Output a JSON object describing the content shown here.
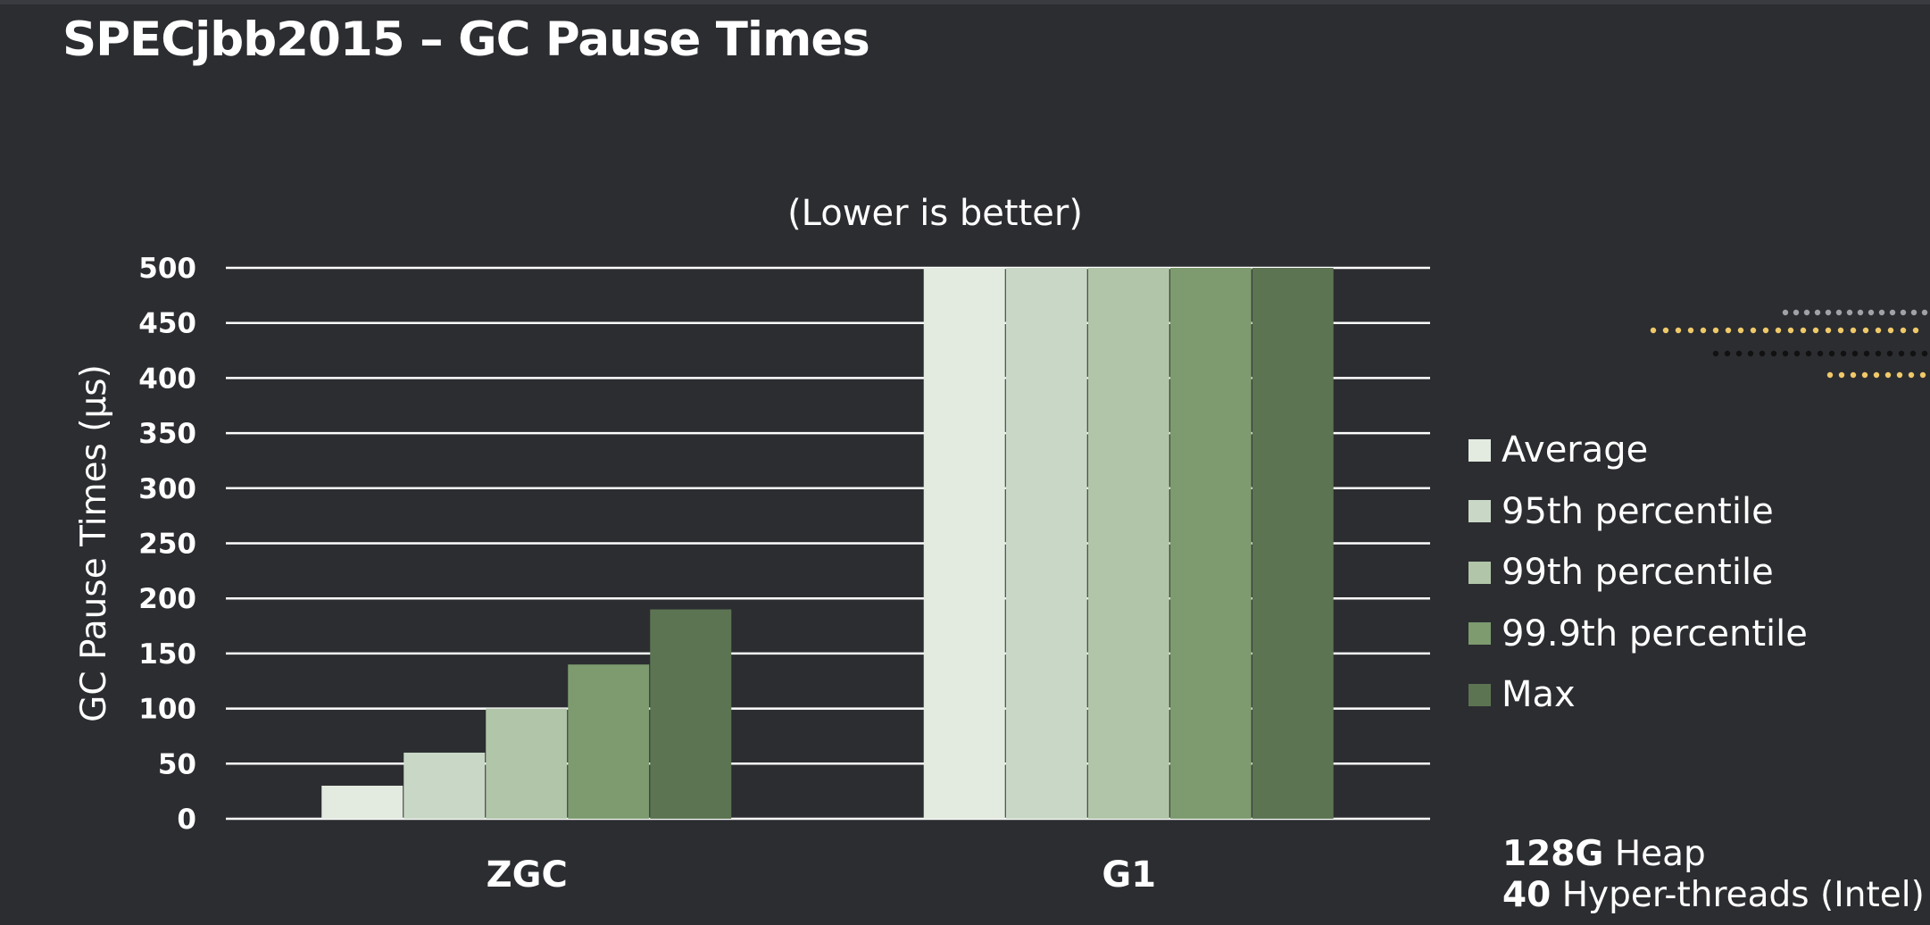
{
  "slide": {
    "title": "SPECjbb2015 – GC Pause Times"
  },
  "notes": [
    {
      "strong": "128G",
      "text": "Heap"
    },
    {
      "strong": "40",
      "text": "Hyper-threads (Intel)"
    }
  ],
  "chart_data": {
    "type": "bar",
    "subtitle": "(Lower is better)",
    "ylabel": "GC Pause Times (µs)",
    "xlabel": "",
    "categories": [
      "ZGC",
      "G1"
    ],
    "ylim": [
      0,
      500
    ],
    "yticks": [
      0,
      50,
      100,
      150,
      200,
      250,
      300,
      350,
      400,
      450,
      500
    ],
    "grid": true,
    "legend_position": "right",
    "series": [
      {
        "name": "Average",
        "values": [
          30,
          500
        ],
        "color": "#e3ebe1"
      },
      {
        "name": "95th percentile",
        "values": [
          60,
          500
        ],
        "color": "#c9d8c6"
      },
      {
        "name": "99th percentile",
        "values": [
          100,
          500
        ],
        "color": "#b1c5a9"
      },
      {
        "name": "99.9th percentile",
        "values": [
          140,
          500
        ],
        "color": "#7d9b6f"
      },
      {
        "name": "Max",
        "values": [
          190,
          500
        ],
        "color": "#5c7452"
      }
    ]
  },
  "decor": {
    "dot_colors": [
      "#f0c969",
      "#a0a2a8",
      "#111111"
    ]
  }
}
